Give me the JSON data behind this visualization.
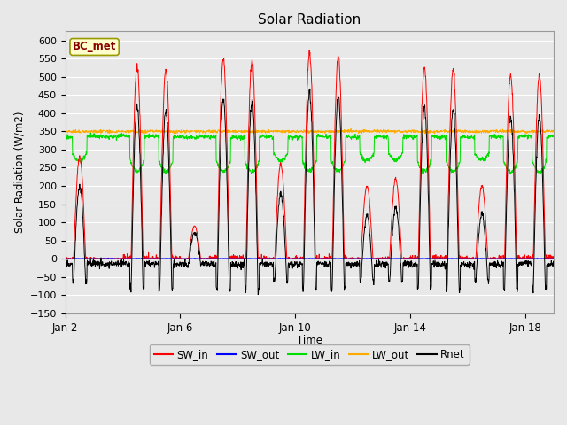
{
  "title": "Solar Radiation",
  "ylabel": "Solar Radiation (W/m2)",
  "xlabel": "Time",
  "ylim": [
    -150,
    625
  ],
  "yticks": [
    -150,
    -100,
    -50,
    0,
    50,
    100,
    150,
    200,
    250,
    300,
    350,
    400,
    450,
    500,
    550,
    600
  ],
  "xtick_labels": [
    "Jan 2",
    "Jan 6",
    "Jan 10",
    "Jan 14",
    "Jan 18"
  ],
  "fig_bg": "#e8e8e8",
  "plot_bg": "#e8e8e8",
  "grid_color": "#ffffff",
  "colors": {
    "SW_in": "#ff0000",
    "SW_out": "#0000ff",
    "LW_in": "#00dd00",
    "LW_out": "#ffaa00",
    "Rnet": "#000000"
  },
  "legend_label": "BC_met",
  "n_points": 2000
}
